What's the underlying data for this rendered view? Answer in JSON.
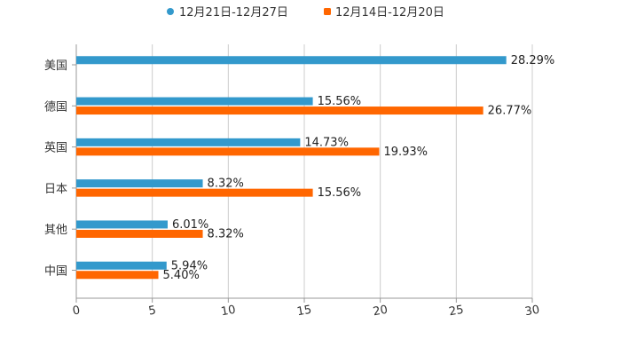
{
  "chart_data": {
    "type": "bar",
    "orientation": "horizontal",
    "categories": [
      "美国",
      "德国",
      "英国",
      "日本",
      "其他",
      "中国"
    ],
    "series": [
      {
        "name": "12月21日-12月27日",
        "color": "#3399cc",
        "values": [
          28.29,
          15.56,
          14.73,
          8.32,
          6.01,
          5.94
        ],
        "labels": [
          "28.29%",
          "15.56%",
          "14.73%",
          "8.32%",
          "6.01%",
          "5.94%"
        ]
      },
      {
        "name": "12月14日-12月20日",
        "color": "#ff6600",
        "values": [
          null,
          26.77,
          19.93,
          15.56,
          8.32,
          5.4
        ],
        "labels": [
          null,
          "26.77%",
          "19.93%",
          "15.56%",
          "8.32%",
          "5.40%"
        ]
      }
    ],
    "xlim": [
      0,
      30
    ],
    "xticks": [
      "0",
      "5",
      "10",
      "15",
      "20",
      "25",
      "30"
    ],
    "grid": true,
    "legend_position": "top-center",
    "axis_color": "#999999",
    "grid_color": "#cccccc"
  }
}
